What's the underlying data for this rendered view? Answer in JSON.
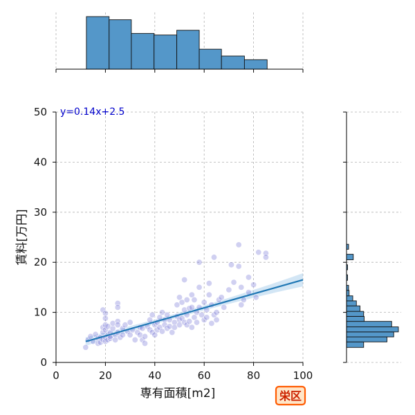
{
  "chart_data": {
    "type": "scatter",
    "subtype": "joint plot with marginal histograms and regression line",
    "xlabel": "専有面積[m2]",
    "ylabel": "賃料[万円]",
    "xlim": [
      0,
      100
    ],
    "ylim": [
      0,
      50
    ],
    "xticks": [
      "0",
      "20",
      "40",
      "60",
      "80",
      "100"
    ],
    "yticks": [
      "0",
      "10",
      "20",
      "30",
      "40",
      "50"
    ],
    "grid": true,
    "annotation": "y=0.14x+2.5",
    "badge": "栄区",
    "regression": {
      "slope": 0.14,
      "intercept": 2.5,
      "x_range": [
        12,
        100
      ],
      "ci_band": true
    },
    "colors": {
      "points": "#6e6ed2",
      "regression": "#1f77b4",
      "histogram": "#5497c9",
      "badge_border": "#ff5a00",
      "badge_text": "#cc2200",
      "annotation": "#0000cc"
    },
    "x_histogram": {
      "bins": [
        [
          12.3,
          21.5
        ],
        [
          21.5,
          30.5
        ],
        [
          30.5,
          39.7
        ],
        [
          39.7,
          48.9
        ],
        [
          48.9,
          58.0
        ],
        [
          58.0,
          67.0
        ],
        [
          67.0,
          76.3
        ],
        [
          76.3,
          85.5
        ]
      ],
      "relative_heights": [
        1.0,
        0.94,
        0.68,
        0.65,
        0.74,
        0.38,
        0.25,
        0.18
      ]
    },
    "y_histogram": {
      "bins": [
        [
          3,
          4.1
        ],
        [
          4.1,
          5.1
        ],
        [
          5.1,
          6.1
        ],
        [
          6.1,
          7.1
        ],
        [
          7.1,
          8.2
        ],
        [
          8.2,
          9.2
        ],
        [
          9.2,
          10.2
        ],
        [
          10.2,
          11.3
        ],
        [
          11.3,
          12.3
        ],
        [
          12.3,
          13.3
        ],
        [
          13.3,
          14.4
        ],
        [
          14.4,
          15.4
        ],
        [
          15.4,
          16.4
        ],
        [
          16.4,
          17.5
        ],
        [
          17.5,
          18.5
        ],
        [
          18.5,
          19.5
        ],
        [
          19.5,
          20.5
        ],
        [
          20.5,
          21.6
        ],
        [
          21.6,
          22.6
        ],
        [
          22.6,
          23.6
        ]
      ],
      "relative_heights": [
        0.33,
        0.78,
        0.91,
        1.0,
        0.87,
        0.34,
        0.33,
        0.26,
        0.19,
        0.12,
        0.05,
        0.04,
        0.0,
        0.02,
        0.0,
        0.02,
        0.0,
        0.13,
        0.0,
        0.04
      ]
    },
    "points": [
      [
        12,
        3.0
      ],
      [
        13,
        4.5
      ],
      [
        14,
        5.2
      ],
      [
        15,
        4.2
      ],
      [
        16,
        5.6
      ],
      [
        17,
        4.8
      ],
      [
        17,
        3.8
      ],
      [
        18,
        5.0
      ],
      [
        18,
        4.0
      ],
      [
        19,
        4.6
      ],
      [
        19,
        6.0
      ],
      [
        19,
        7.0
      ],
      [
        19,
        10.5
      ],
      [
        20,
        9.8
      ],
      [
        20,
        8.8
      ],
      [
        20,
        7.5
      ],
      [
        20,
        6.5
      ],
      [
        20,
        5.0
      ],
      [
        20,
        4.2
      ],
      [
        21,
        5.5
      ],
      [
        21,
        4.5
      ],
      [
        21,
        7.2
      ],
      [
        22,
        4.8
      ],
      [
        22,
        6.0
      ],
      [
        22,
        5.2
      ],
      [
        23,
        6.8
      ],
      [
        23,
        7.8
      ],
      [
        24,
        5.5
      ],
      [
        24,
        4.5
      ],
      [
        25,
        11.8
      ],
      [
        25,
        11.0
      ],
      [
        25,
        8.2
      ],
      [
        25,
        7.5
      ],
      [
        25,
        6.0
      ],
      [
        26,
        5.0
      ],
      [
        27,
        6.8
      ],
      [
        27,
        5.5
      ],
      [
        28,
        7.5
      ],
      [
        29,
        6.2
      ],
      [
        30,
        8.0
      ],
      [
        30,
        5.5
      ],
      [
        31,
        6.5
      ],
      [
        32,
        4.5
      ],
      [
        33,
        6.0
      ],
      [
        34,
        7.0
      ],
      [
        34,
        5.5
      ],
      [
        35,
        4.5
      ],
      [
        35,
        6.8
      ],
      [
        36,
        3.8
      ],
      [
        36,
        5.2
      ],
      [
        37,
        7.2
      ],
      [
        38,
        6.5
      ],
      [
        38,
        8.5
      ],
      [
        39,
        9.5
      ],
      [
        39,
        6.0
      ],
      [
        40,
        7.5
      ],
      [
        40,
        5.5
      ],
      [
        41,
        8.0
      ],
      [
        41,
        6.5
      ],
      [
        42,
        9.0
      ],
      [
        42,
        7.0
      ],
      [
        43,
        10.0
      ],
      [
        43,
        6.2
      ],
      [
        44,
        8.5
      ],
      [
        44,
        7.5
      ],
      [
        45,
        9.5
      ],
      [
        45,
        6.8
      ],
      [
        46,
        7.2
      ],
      [
        46,
        8.5
      ],
      [
        47,
        6.0
      ],
      [
        48,
        8.0
      ],
      [
        48,
        7.0
      ],
      [
        49,
        9.2
      ],
      [
        49,
        11.5
      ],
      [
        50,
        8.5
      ],
      [
        50,
        7.5
      ],
      [
        50,
        13.0
      ],
      [
        51,
        8.8
      ],
      [
        51,
        12.0
      ],
      [
        52,
        10.5
      ],
      [
        52,
        8.0
      ],
      [
        52,
        16.5
      ],
      [
        53,
        12.5
      ],
      [
        53,
        9.5
      ],
      [
        53,
        7.5
      ],
      [
        54,
        10.8
      ],
      [
        54,
        8.2
      ],
      [
        55,
        13.5
      ],
      [
        55,
        11.0
      ],
      [
        55,
        7.0
      ],
      [
        56,
        9.0
      ],
      [
        56,
        12.5
      ],
      [
        57,
        10.0
      ],
      [
        57,
        8.0
      ],
      [
        58,
        15.0
      ],
      [
        58,
        20.0
      ],
      [
        58,
        11.0
      ],
      [
        59,
        9.5
      ],
      [
        60,
        12.0
      ],
      [
        60,
        8.5
      ],
      [
        61,
        10.5
      ],
      [
        61,
        9.0
      ],
      [
        62,
        13.5
      ],
      [
        62,
        15.8
      ],
      [
        63,
        11.5
      ],
      [
        63,
        7.8
      ],
      [
        64,
        9.5
      ],
      [
        64,
        21.0
      ],
      [
        65,
        8.5
      ],
      [
        65,
        10.0
      ],
      [
        66,
        12.5
      ],
      [
        67,
        13.0
      ],
      [
        68,
        11.0
      ],
      [
        70,
        14.5
      ],
      [
        71,
        19.5
      ],
      [
        72,
        16.0
      ],
      [
        74,
        23.5
      ],
      [
        74,
        19.2
      ],
      [
        75,
        15.0
      ],
      [
        75,
        11.5
      ],
      [
        76,
        12.5
      ],
      [
        78,
        17.0
      ],
      [
        78,
        14.0
      ],
      [
        80,
        15.5
      ],
      [
        81,
        13.0
      ],
      [
        82,
        22.0
      ],
      [
        85,
        21.8
      ],
      [
        85,
        21.0
      ]
    ]
  }
}
